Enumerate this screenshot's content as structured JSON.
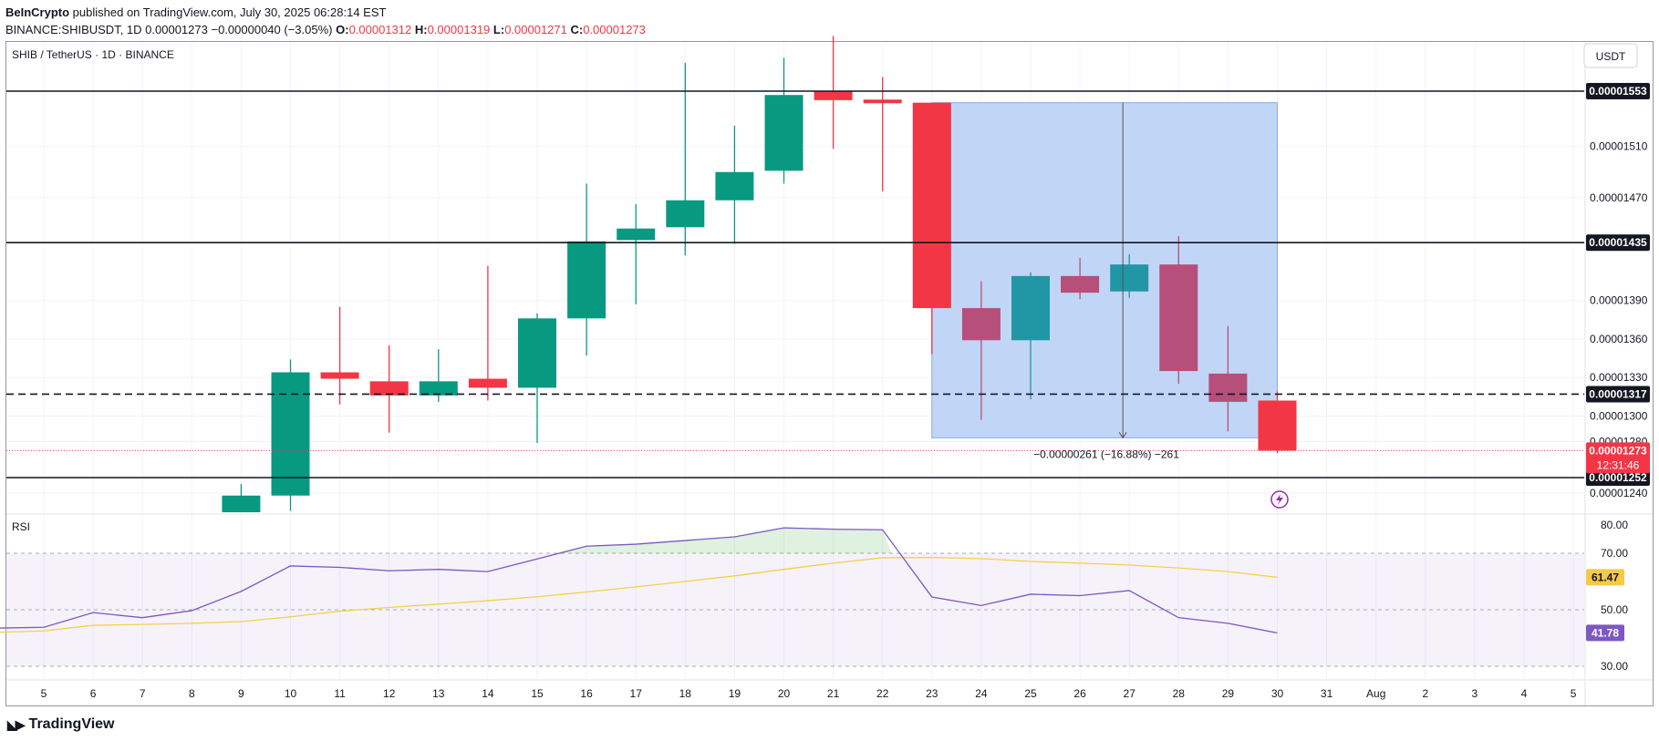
{
  "header": {
    "publisher": "BeInCrypto",
    "published_text": " published on TradingView.com, July 30, 2025 06:28:14 EST",
    "symbol": "BINANCE:SHIBUSDT, 1D",
    "last": "0.00001273",
    "change": "−0.00000040 (−3.05%)",
    "o_label": "O:",
    "o": "0.00001312",
    "h_label": "H:",
    "h": "0.00001319",
    "l_label": "L:",
    "l": "0.00001271",
    "c_label": "C:",
    "c": "0.00001273"
  },
  "chart_title": "SHIB / TetherUS · 1D · BINANCE",
  "currency_button": "USDT",
  "footer_logo": "TradingView",
  "colors": {
    "up": "#089981",
    "down": "#f23645",
    "up_in_zone": "#2196a5",
    "down_in_zone": "#b64f7a",
    "zone_fill": "#bed3f5",
    "rsi": "#7e57c2",
    "rsi_ma": "#f5d04a",
    "grid": "#f0f3fa"
  },
  "chart_data": [
    {
      "type": "candlestick",
      "title": "SHIB / TetherUS · 1D · BINANCE",
      "x_ticks": [
        "5",
        "6",
        "7",
        "8",
        "9",
        "10",
        "11",
        "12",
        "13",
        "14",
        "15",
        "16",
        "17",
        "18",
        "19",
        "20",
        "21",
        "22",
        "23",
        "24",
        "25",
        "26",
        "27",
        "28",
        "29",
        "30",
        "31",
        "Aug",
        "2",
        "3",
        "4",
        "5"
      ],
      "y_ticks": [
        "0.00001510",
        "0.00001470",
        "0.00001390",
        "0.00001360",
        "0.00001330",
        "0.00001300",
        "0.00001280",
        "0.00001240"
      ],
      "ylim": [
        1.222e-05,
        1.6e-05
      ],
      "candles": [
        {
          "day": "9",
          "o": 1.225e-05,
          "h": 1.247e-05,
          "l": 1.225e-05,
          "c": 1.238e-05
        },
        {
          "day": "10",
          "o": 1.238e-05,
          "h": 1.344e-05,
          "l": 1.226e-05,
          "c": 1.334e-05
        },
        {
          "day": "11",
          "o": 1.334e-05,
          "h": 1.385e-05,
          "l": 1.309e-05,
          "c": 1.329e-05
        },
        {
          "day": "12",
          "o": 1.327e-05,
          "h": 1.355e-05,
          "l": 1.287e-05,
          "c": 1.316e-05
        },
        {
          "day": "13",
          "o": 1.316e-05,
          "h": 1.352e-05,
          "l": 1.311e-05,
          "c": 1.327e-05
        },
        {
          "day": "14",
          "o": 1.329e-05,
          "h": 1.417e-05,
          "l": 1.312e-05,
          "c": 1.322e-05
        },
        {
          "day": "15",
          "o": 1.322e-05,
          "h": 1.38e-05,
          "l": 1.279e-05,
          "c": 1.376e-05
        },
        {
          "day": "16",
          "o": 1.376e-05,
          "h": 1.481e-05,
          "l": 1.347e-05,
          "c": 1.436e-05
        },
        {
          "day": "17",
          "o": 1.437e-05,
          "h": 1.465e-05,
          "l": 1.387e-05,
          "c": 1.446e-05
        },
        {
          "day": "18",
          "o": 1.447e-05,
          "h": 1.575e-05,
          "l": 1.425e-05,
          "c": 1.468e-05
        },
        {
          "day": "19",
          "o": 1.468e-05,
          "h": 1.526e-05,
          "l": 1.434e-05,
          "c": 1.49e-05
        },
        {
          "day": "20",
          "o": 1.491e-05,
          "h": 1.579e-05,
          "l": 1.481e-05,
          "c": 1.55e-05
        },
        {
          "day": "21",
          "o": 1.553e-05,
          "h": 1.596e-05,
          "l": 1.508e-05,
          "c": 1.546e-05
        },
        {
          "day": "22",
          "o": 1.546e-05,
          "h": 1.564e-05,
          "l": 1.475e-05,
          "c": 1.544e-05
        },
        {
          "day": "23",
          "o": 1.544e-05,
          "h": 1.544e-05,
          "l": 1.348e-05,
          "c": 1.384e-05
        },
        {
          "day": "24",
          "o": 1.384e-05,
          "h": 1.405e-05,
          "l": 1.297e-05,
          "c": 1.359e-05
        },
        {
          "day": "25",
          "o": 1.359e-05,
          "h": 1.412e-05,
          "l": 1.313e-05,
          "c": 1.409e-05
        },
        {
          "day": "26",
          "o": 1.409e-05,
          "h": 1.423e-05,
          "l": 1.391e-05,
          "c": 1.396e-05
        },
        {
          "day": "27",
          "o": 1.397e-05,
          "h": 1.426e-05,
          "l": 1.392e-05,
          "c": 1.418e-05
        },
        {
          "day": "28",
          "o": 1.418e-05,
          "h": 1.44e-05,
          "l": 1.325e-05,
          "c": 1.335e-05
        },
        {
          "day": "29",
          "o": 1.333e-05,
          "h": 1.37e-05,
          "l": 1.288e-05,
          "c": 1.311e-05
        },
        {
          "day": "30",
          "o": 1.312e-05,
          "h": 1.319e-05,
          "l": 1.271e-05,
          "c": 1.273e-05
        }
      ],
      "levels": [
        {
          "price": 1.553e-05,
          "label": "0.00001553",
          "style": "solid"
        },
        {
          "price": 1.435e-05,
          "label": "0.00001435",
          "style": "solid"
        },
        {
          "price": 1.317e-05,
          "label": "0.00001317",
          "style": "dashed"
        },
        {
          "price": 1.252e-05,
          "label": "0.00001252",
          "style": "solid"
        }
      ],
      "last_price": {
        "price": 1.273e-05,
        "label": "0.00001273",
        "countdown": "12:31:46"
      },
      "measure": {
        "from_day": "23",
        "to_day": "30",
        "top": 1.544e-05,
        "bottom": 1.283e-05,
        "label": "−0.00000261 (−16.88%) −261"
      }
    },
    {
      "type": "line",
      "title": "RSI",
      "ylim": [
        25,
        85
      ],
      "y_ticks": [
        "80.00",
        "70.00",
        "50.00",
        "30.00"
      ],
      "band": [
        30,
        70
      ],
      "mid": 50,
      "series": [
        {
          "key": "rsi",
          "label": "41.78",
          "x": [
            "4",
            "5",
            "6",
            "7",
            "8",
            "9",
            "10",
            "11",
            "12",
            "13",
            "14",
            "15",
            "16",
            "17",
            "18",
            "19",
            "20",
            "21",
            "22",
            "23",
            "24",
            "25",
            "26",
            "27",
            "28",
            "29",
            "30"
          ],
          "values": [
            43.5,
            43.8,
            49.0,
            47.2,
            49.7,
            56.5,
            65.5,
            65.0,
            63.8,
            64.3,
            63.5,
            68.0,
            72.5,
            73.2,
            74.5,
            75.8,
            79.0,
            78.5,
            78.3,
            54.5,
            51.5,
            55.5,
            55.0,
            56.8,
            47.2,
            45.2,
            41.8
          ]
        },
        {
          "key": "ma",
          "label": "61.47",
          "x": [
            "4",
            "5",
            "6",
            "7",
            "8",
            "9",
            "10",
            "11",
            "12",
            "13",
            "14",
            "15",
            "16",
            "17",
            "18",
            "19",
            "20",
            "21",
            "22",
            "23",
            "24",
            "25",
            "26",
            "27",
            "28",
            "29",
            "30"
          ],
          "values": [
            42.0,
            42.5,
            44.5,
            44.8,
            45.2,
            45.8,
            47.5,
            49.5,
            50.8,
            52.0,
            53.2,
            54.6,
            56.3,
            58.1,
            60.0,
            62.0,
            64.3,
            66.5,
            68.4,
            68.5,
            68.1,
            67.1,
            66.5,
            65.8,
            64.8,
            63.5,
            61.5
          ]
        }
      ]
    }
  ]
}
